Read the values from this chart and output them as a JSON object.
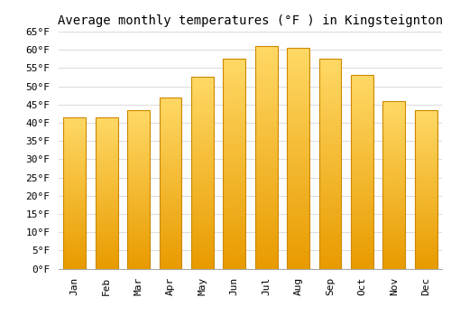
{
  "title": "Average monthly temperatures (°F ) in Kingsteignton",
  "months": [
    "Jan",
    "Feb",
    "Mar",
    "Apr",
    "May",
    "Jun",
    "Jul",
    "Aug",
    "Sep",
    "Oct",
    "Nov",
    "Dec"
  ],
  "values": [
    41.5,
    41.5,
    43.5,
    47,
    52.5,
    57.5,
    61,
    60.5,
    57.5,
    53,
    46,
    43.5
  ],
  "bar_color_top": "#FFD966",
  "bar_color_bottom": "#E89B00",
  "bar_edge_color": "#CC8800",
  "ylim": [
    0,
    65
  ],
  "ytick_step": 5,
  "background_color": "#ffffff",
  "grid_color": "#dddddd",
  "title_fontsize": 10,
  "tick_fontsize": 8,
  "font_family": "monospace"
}
